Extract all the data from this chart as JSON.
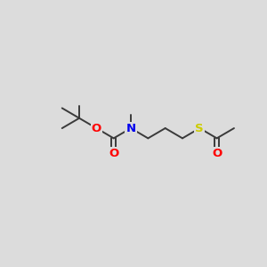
{
  "bg_color": "#dcdcdc",
  "bond_color": "#3a3a3a",
  "atom_colors": {
    "O": "#ff0000",
    "N": "#0000ee",
    "S": "#cccc00",
    "C": "#3a3a3a"
  },
  "figsize": [
    3.0,
    3.0
  ],
  "dpi": 100,
  "bond_lw": 1.4,
  "font_size": 9.5
}
